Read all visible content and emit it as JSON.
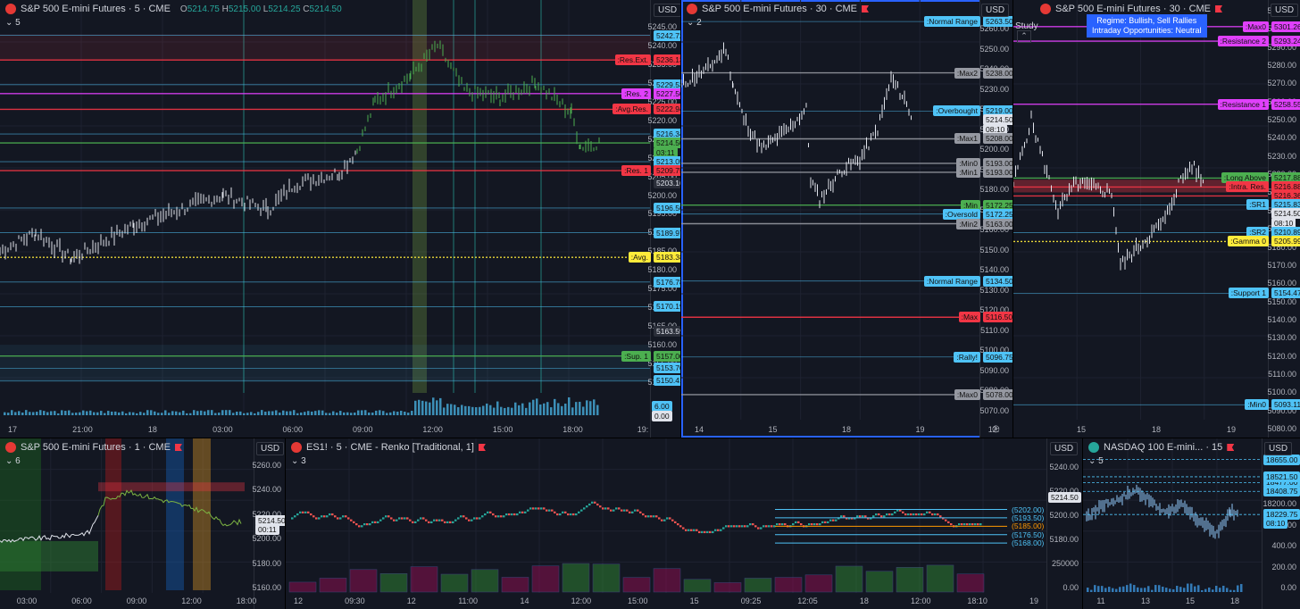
{
  "colors": {
    "bg": "#131722",
    "grid": "#1e2230",
    "accent": "#2962ff",
    "up": "#26a69a",
    "down": "#ef5350",
    "red": "#f23645",
    "green": "#4caf50",
    "yellow": "#ffeb3b",
    "magenta": "#e040fb",
    "cyan": "#4fc3f7",
    "gray": "#b2b5be"
  },
  "p1": {
    "title": "S&P 500 E-mini Futures · 5 · CME",
    "ohlc": {
      "o": "5214.75",
      "h": "5215.00",
      "l": "5214.25",
      "c": "5214.50"
    },
    "indicator_count": "5",
    "currency": "USD",
    "ticks": [
      "5245.00",
      "5240.00",
      "5235.00",
      "5230.00",
      "5225.00",
      "5220.00",
      "5215.00",
      "5210.00",
      "5205.00",
      "5200.00",
      "5195.00",
      "5190.00",
      "5185.00",
      "5180.00",
      "5175.00",
      "5170.00",
      "5165.00",
      "5160.00",
      "5155.00",
      "5150.00"
    ],
    "xticks": [
      "17",
      "21:00",
      "18",
      "03:00",
      "06:00",
      "09:00",
      "12:00",
      "15:00",
      "18:00",
      "19:"
    ],
    "labels": [
      {
        "t": "",
        "v": "5242.72",
        "c": "cyan"
      },
      {
        "t": ":Res.Ext.",
        "v": "5236.13",
        "c": "red"
      },
      {
        "t": "",
        "v": "5229.53",
        "c": "cyan"
      },
      {
        "t": ":Res. 2",
        "v": "5227.50",
        "c": "magenta"
      },
      {
        "t": ":Avg.Res.",
        "v": "5222.94",
        "c": "red"
      },
      {
        "t": "",
        "v": "5216.34",
        "c": "cyan"
      },
      {
        "t": "",
        "v": "5214.50",
        "c": "green"
      },
      {
        "t": "",
        "v": "03:11",
        "c": "green"
      },
      {
        "t": "",
        "v": "5213.05",
        "c": "cyan"
      },
      {
        "t": ":Res. 1",
        "v": "5209.75",
        "c": "red"
      },
      {
        "t": "",
        "v": "5203.16",
        "c": "dark"
      },
      {
        "t": "",
        "v": "5196.56",
        "c": "cyan"
      },
      {
        "t": "",
        "v": "5189.97",
        "c": "cyan"
      },
      {
        "t": ":Avg.",
        "v": "5183.38",
        "c": "yellow"
      },
      {
        "t": "",
        "v": "5176.78",
        "c": "cyan"
      },
      {
        "t": "",
        "v": "5170.19",
        "c": "cyan"
      },
      {
        "t": "",
        "v": "5163.59",
        "c": "dark"
      },
      {
        "t": ":Sup. 1",
        "v": "5157.00",
        "c": "green"
      },
      {
        "t": "",
        "v": "5153.70",
        "c": "cyan"
      },
      {
        "t": "",
        "v": "5150.41",
        "c": "cyan"
      },
      {
        "t": "",
        "v": "6.00",
        "c": "cyan"
      },
      {
        "t": "",
        "v": "0.00",
        "c": "white"
      }
    ]
  },
  "p2": {
    "title": "S&P 500 E-mini Futures · 30 · CME",
    "indicator_count": "2",
    "currency": "USD",
    "ticks": [
      "5260.00",
      "5250.00",
      "5240.00",
      "5230.00",
      "5220.00",
      "5210.00",
      "5200.00",
      "5190.00",
      "5180.00",
      "5170.00",
      "5160.00",
      "5150.00",
      "5140.00",
      "5130.00",
      "5120.00",
      "5110.00",
      "5100.00",
      "5090.00",
      "5080.00",
      "5070.00"
    ],
    "xticks": [
      "14",
      "15",
      "18",
      "19",
      "12:"
    ],
    "labels": [
      {
        "t": ":Normal Range",
        "v": "5263.50",
        "c": "cyan"
      },
      {
        "t": ":Max2",
        "v": "5238.00",
        "c": "gray"
      },
      {
        "t": ":Overbought",
        "v": "5219.00",
        "c": "cyan"
      },
      {
        "t": "",
        "v": "5214.50",
        "c": "white"
      },
      {
        "t": "",
        "v": "08:10",
        "c": "white"
      },
      {
        "t": ":Max1",
        "v": "5208.00",
        "c": "gray"
      },
      {
        "t": ":Min0",
        "v": "5193.00",
        "c": "gray"
      },
      {
        "t": ":Min1",
        "v": "5193.00",
        "c": "gray"
      },
      {
        "t": ":Min",
        "v": "5172.25",
        "c": "green"
      },
      {
        "t": ":Oversold",
        "v": "5172.25",
        "c": "cyan"
      },
      {
        "t": ":Min2",
        "v": "5163.00",
        "c": "gray"
      },
      {
        "t": ":Normal Range",
        "v": "5134.50",
        "c": "cyan"
      },
      {
        "t": ":Max",
        "v": "5116.50",
        "c": "red"
      },
      {
        "t": ":Rally!",
        "v": "5096.75",
        "c": "cyan"
      },
      {
        "t": ":Max0",
        "v": "5078.00",
        "c": "gray"
      }
    ]
  },
  "p3": {
    "title": "S&P 500 E-mini Futures · 30 · CME",
    "study": "Study",
    "regime_line1": "Regime: Bullish, Sell Rallies",
    "regime_line2": "Intraday Opportunities: Neutral",
    "currency": "USD",
    "ticks": [
      "5310.00",
      "5300.00",
      "5290.00",
      "5280.00",
      "5270.00",
      "5260.00",
      "5250.00",
      "5240.00",
      "5230.00",
      "5220.00",
      "5210.00",
      "5200.00",
      "5190.00",
      "5180.00",
      "5170.00",
      "5160.00",
      "5150.00",
      "5140.00",
      "5130.00",
      "5120.00",
      "5110.00",
      "5100.00",
      "5090.00",
      "5080.00"
    ],
    "xticks": [
      "15",
      "18",
      "19"
    ],
    "labels": [
      {
        "t": ":Max0",
        "v": "5301.26",
        "c": "magenta"
      },
      {
        "t": ":Resistance 2",
        "v": "5293.24",
        "c": "magenta"
      },
      {
        "t": ":Resistance 1",
        "v": "5258.55",
        "c": "magenta"
      },
      {
        "t": ":Long Above",
        "v": "5217.88",
        "c": "green"
      },
      {
        "t": ":Intra. Res.",
        "v": "5216.88",
        "c": "red"
      },
      {
        "t": "",
        "v": "5216.36",
        "c": "red"
      },
      {
        "t": ":SR1",
        "v": "5215.83",
        "c": "cyan"
      },
      {
        "t": "",
        "v": "5214.50",
        "c": "white"
      },
      {
        "t": "",
        "v": "08:10",
        "c": "white"
      },
      {
        "t": ":SR2",
        "v": "5210.89",
        "c": "cyan"
      },
      {
        "t": ":Gamma 0",
        "v": "5205.99",
        "c": "yellow"
      },
      {
        "t": ":Support 1",
        "v": "5154.47",
        "c": "cyan"
      },
      {
        "t": ":Min0",
        "v": "5093.11",
        "c": "cyan"
      }
    ]
  },
  "p4": {
    "title": "S&P 500 E-mini Futures · 1 · CME",
    "indicator_count": "6",
    "currency": "USD",
    "ticks": [
      "5260.00",
      "5240.00",
      "5220.00",
      "5200.00",
      "5180.00",
      "5160.00"
    ],
    "xticks": [
      "03:00",
      "06:00",
      "09:00",
      "12:00",
      "18:00"
    ],
    "labels": [
      {
        "t": "",
        "v": "5214.50",
        "c": "white"
      },
      {
        "t": "",
        "v": "00:11",
        "c": "white"
      }
    ]
  },
  "p5": {
    "title": "ES1! · 5 · CME - Renko [Traditional, 1]",
    "indicator_count": "3",
    "currency": "USD",
    "ticks": [
      "5240.00",
      "5220.00",
      "5200.00",
      "5180.00",
      "250000",
      "0.00"
    ],
    "xticks": [
      "12",
      "09:30",
      "12",
      "11:00",
      "14",
      "12:00",
      "15:00",
      "15",
      "09:25",
      "12:05",
      "18",
      "12:00",
      "18:10",
      "19"
    ],
    "levels": [
      "(5202.00)",
      "(5193.50)",
      "(5185.00)",
      "(5176.50)",
      "(5168.00)"
    ],
    "labels": [
      {
        "t": "",
        "v": "5214.50",
        "c": "white"
      }
    ]
  },
  "p6": {
    "title": "NASDAQ 100 E-mini... · 15",
    "indicator_count": "5",
    "currency": "USD",
    "ticks": [
      "18600.00",
      "18400.00",
      "18200.00",
      "18000.00",
      "400.00",
      "200.00",
      "0.00"
    ],
    "xticks": [
      "11",
      "13",
      "15",
      "18"
    ],
    "labels": [
      {
        "t": "",
        "v": "18655.00",
        "c": "cyan"
      },
      {
        "t": "",
        "v": "18477.00",
        "c": "cyan"
      },
      {
        "t": "",
        "v": "18521.50",
        "c": "cyan"
      },
      {
        "t": "",
        "v": "18408.75",
        "c": "cyan"
      },
      {
        "t": "",
        "v": "18229.75",
        "c": "cyan"
      },
      {
        "t": "",
        "v": "08:10",
        "c": "cyan"
      }
    ]
  }
}
